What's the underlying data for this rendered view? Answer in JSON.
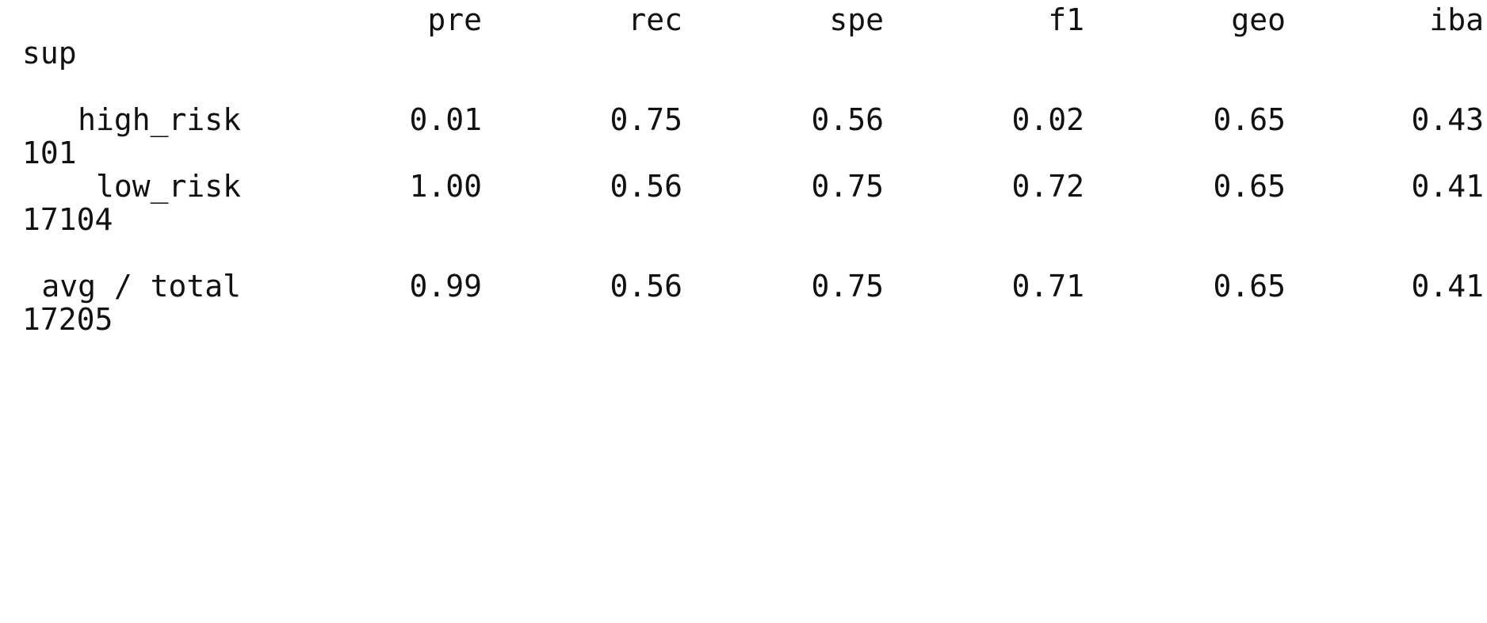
{
  "report": {
    "header": {
      "columns": [
        "pre",
        "rec",
        "spe",
        "f1",
        "geo",
        "iba"
      ],
      "wrapped": "sup"
    },
    "rows": [
      {
        "label": "high_risk",
        "values": [
          "0.01",
          "0.75",
          "0.56",
          "0.02",
          "0.65",
          "0.43"
        ],
        "wrapped": "101"
      },
      {
        "label": "low_risk",
        "values": [
          "1.00",
          "0.56",
          "0.75",
          "0.72",
          "0.65",
          "0.41"
        ],
        "wrapped": "17104"
      },
      {
        "label": "avg / total",
        "values": [
          "0.99",
          "0.56",
          "0.75",
          "0.71",
          "0.65",
          "0.41"
        ],
        "wrapped": "17205"
      }
    ]
  }
}
